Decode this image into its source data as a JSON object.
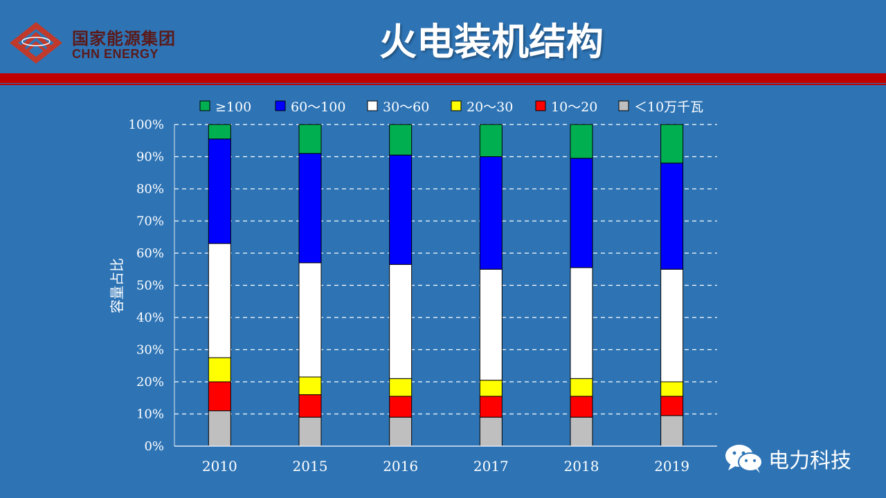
{
  "header": {
    "brand_cn": "国家能源集团",
    "brand_en": "CHN ENERGY",
    "title": "火电装机结构"
  },
  "watermark": {
    "text": "电力科技",
    "icon": "wechat-icon"
  },
  "colors": {
    "background": "#2E74B5",
    "accent_band": "#C00000",
    "logo": "#C0392B"
  },
  "chart_data": {
    "type": "bar",
    "stacked": true,
    "normalized": true,
    "categories": [
      "2010",
      "2015",
      "2016",
      "2017",
      "2018",
      "2019"
    ],
    "ylabel": "容量占比",
    "xlabel": "",
    "ylim": [
      0,
      100
    ],
    "y_ticks": [
      "0%",
      "10%",
      "20%",
      "30%",
      "40%",
      "50%",
      "60%",
      "70%",
      "80%",
      "90%",
      "100%"
    ],
    "grid": "horizontal dashed",
    "legend_position": "top",
    "series": [
      {
        "name": "＜10万千瓦",
        "color": "#BFBFBF",
        "values": [
          11,
          9,
          9,
          9,
          9,
          9.5
        ]
      },
      {
        "name": "10～20",
        "color": "#FF0000",
        "values": [
          9,
          7,
          6.5,
          6.5,
          6.5,
          6
        ]
      },
      {
        "name": "20～30",
        "color": "#FFFF00",
        "values": [
          7.5,
          5.5,
          5.5,
          5,
          5.5,
          4.5
        ]
      },
      {
        "name": "30～60",
        "color": "#FFFFFF",
        "values": [
          35.5,
          35.5,
          35.5,
          34.5,
          34.5,
          35
        ]
      },
      {
        "name": "60～100",
        "color": "#0000FF",
        "values": [
          32.5,
          34,
          34,
          35,
          34,
          33
        ]
      },
      {
        "name": "≥100",
        "color": "#00B050",
        "values": [
          4.5,
          9,
          9.5,
          10,
          10.5,
          12
        ]
      }
    ]
  }
}
